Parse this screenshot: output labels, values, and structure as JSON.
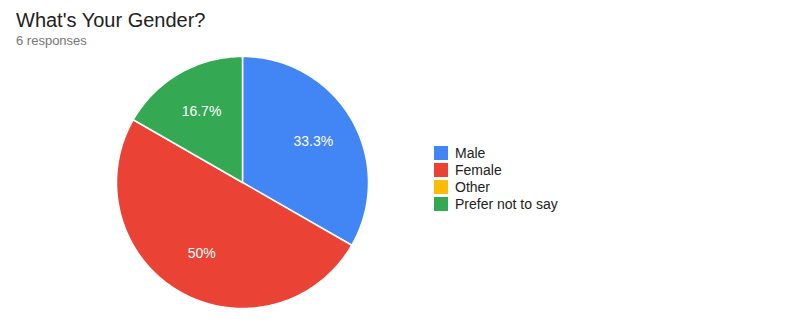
{
  "chart_data": {
    "type": "pie",
    "title": "What's Your Gender?",
    "subtitle": "6 responses",
    "categories": [
      "Male",
      "Female",
      "Other",
      "Prefer not to say"
    ],
    "values": [
      33.3,
      50,
      0,
      16.7
    ],
    "value_labels": [
      "33.3%",
      "50%",
      null,
      "16.7%"
    ],
    "colors": [
      "#4285F4",
      "#EA4335",
      "#FBBC04",
      "#34A853"
    ],
    "data_labels": true,
    "legend": "right"
  }
}
